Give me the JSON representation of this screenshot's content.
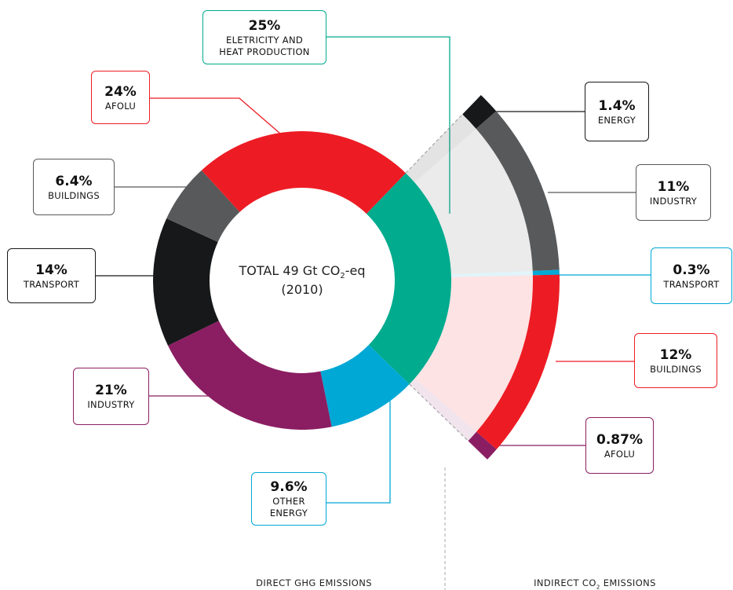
{
  "chart_data": {
    "type": "pie",
    "center_text": [
      "TOTAL 49 Gt CO",
      "2",
      "-eq"
    ],
    "center_year": "(2010)",
    "categories": [
      "ELETRICITY AND\nHEAT PRODUCTION",
      "OTHER\nENERGY",
      "INDUSTRY",
      "TRANSPORT",
      "BUILDINGS",
      "AFOLU"
    ],
    "values": [
      25,
      9.6,
      21,
      14,
      6.4,
      24
    ],
    "value_labels": [
      "25%",
      "9.6%",
      "21%",
      "14%",
      "6.4%",
      "24%"
    ],
    "colors": [
      "#00ab8e",
      "#00a8d6",
      "#8b1e62",
      "#16181a",
      "#58595b",
      "#ed1c24"
    ],
    "breakdown": {
      "categories": [
        "ENERGY",
        "INDUSTRY",
        "TRANSPORT",
        "BUILDINGS",
        "AFOLU"
      ],
      "values": [
        1.4,
        11,
        0.3,
        12,
        0.87
      ],
      "value_labels": [
        "1.4%",
        "11%",
        "0.3%",
        "12%",
        "0.87%"
      ],
      "colors": [
        "#16181a",
        "#58595b",
        "#00a8d6",
        "#ed1c24",
        "#8b1e62"
      ]
    },
    "captions": {
      "direct": "DIRECT GHG EMISSIONS",
      "indirect": [
        "INDIRECT CO",
        "2",
        " EMISSIONS"
      ]
    }
  }
}
